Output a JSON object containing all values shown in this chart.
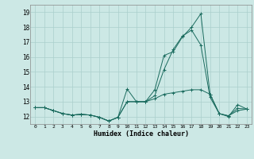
{
  "title": "",
  "xlabel": "Humidex (Indice chaleur)",
  "ylabel": "",
  "background_color": "#cce8e5",
  "grid_color": "#aacfcc",
  "line_color": "#1a6b5e",
  "xlim": [
    -0.5,
    23.5
  ],
  "ylim": [
    11.5,
    19.5
  ],
  "yticks": [
    12,
    13,
    14,
    15,
    16,
    17,
    18,
    19
  ],
  "xticks": [
    0,
    1,
    2,
    3,
    4,
    5,
    6,
    7,
    8,
    9,
    10,
    11,
    12,
    13,
    14,
    15,
    16,
    17,
    18,
    19,
    20,
    21,
    22,
    23
  ],
  "series": [
    [
      12.6,
      12.6,
      12.4,
      12.2,
      12.1,
      12.15,
      12.1,
      11.95,
      11.7,
      11.95,
      13.85,
      13.0,
      13.0,
      13.8,
      16.1,
      16.35,
      17.35,
      18.0,
      18.9,
      13.5,
      12.2,
      12.0,
      12.8,
      12.5
    ],
    [
      12.6,
      12.6,
      12.4,
      12.2,
      12.1,
      12.15,
      12.1,
      11.95,
      11.7,
      11.95,
      13.0,
      13.0,
      13.0,
      13.4,
      15.15,
      16.5,
      17.4,
      17.8,
      16.8,
      13.3,
      12.2,
      12.05,
      12.55,
      12.5
    ],
    [
      12.6,
      12.6,
      12.4,
      12.2,
      12.1,
      12.15,
      12.1,
      11.95,
      11.7,
      11.95,
      13.0,
      13.0,
      13.0,
      13.2,
      13.5,
      13.6,
      13.7,
      13.8,
      13.8,
      13.5,
      12.2,
      12.05,
      12.4,
      12.5
    ]
  ]
}
